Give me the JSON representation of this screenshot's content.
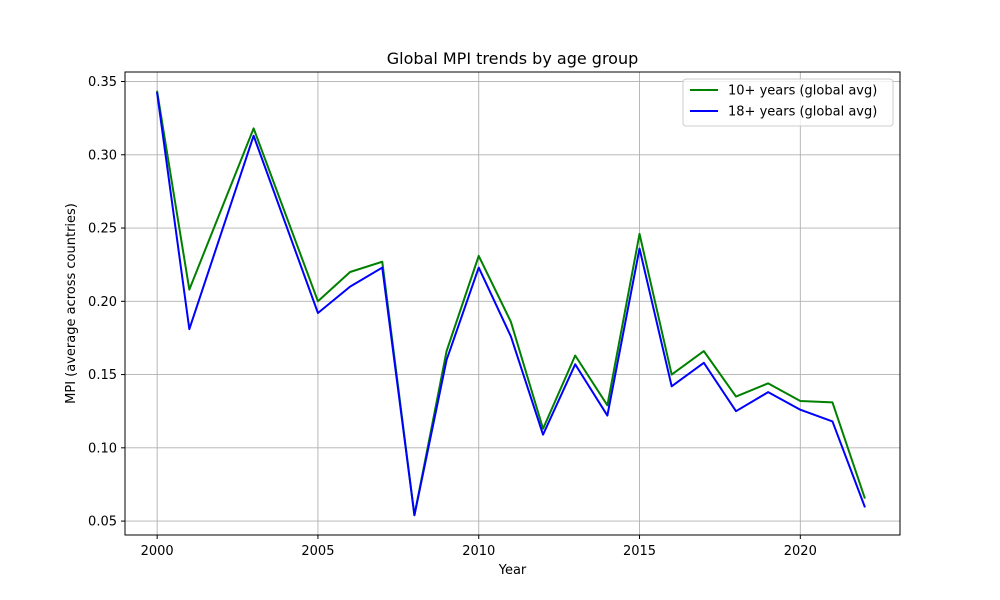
{
  "chart_data": {
    "type": "line",
    "title": "Global MPI trends by age group",
    "xlabel": "Year",
    "ylabel": "MPI (average across countries)",
    "xlim": [
      1999,
      2023.1
    ],
    "ylim": [
      0.0405,
      0.3565
    ],
    "xticks": [
      2000,
      2005,
      2010,
      2015,
      2020
    ],
    "yticks": [
      0.05,
      0.1,
      0.15,
      0.2,
      0.25,
      0.3,
      0.35
    ],
    "ytick_labels": [
      "0.05",
      "0.10",
      "0.15",
      "0.20",
      "0.25",
      "0.30",
      "0.35"
    ],
    "grid": true,
    "legend_position": "top-right",
    "x": [
      2000,
      2001,
      2003,
      2005,
      2006,
      2007,
      2008,
      2009,
      2010,
      2011,
      2012,
      2013,
      2014,
      2015,
      2016,
      2017,
      2018,
      2019,
      2020,
      2021,
      2022
    ],
    "series": [
      {
        "name": "10+ years (global avg)",
        "color": "#008000",
        "values": [
          0.343,
          0.208,
          0.318,
          0.2,
          0.22,
          0.227,
          0.054,
          0.166,
          0.231,
          0.186,
          0.113,
          0.163,
          0.129,
          0.246,
          0.15,
          0.166,
          0.135,
          0.144,
          0.132,
          0.131,
          0.066
        ]
      },
      {
        "name": "18+ years (global avg)",
        "color": "#0000ff",
        "values": [
          0.342,
          0.181,
          0.313,
          0.192,
          0.21,
          0.223,
          0.054,
          0.16,
          0.223,
          0.176,
          0.109,
          0.157,
          0.122,
          0.236,
          0.142,
          0.158,
          0.125,
          0.138,
          0.126,
          0.118,
          0.06
        ]
      }
    ]
  }
}
